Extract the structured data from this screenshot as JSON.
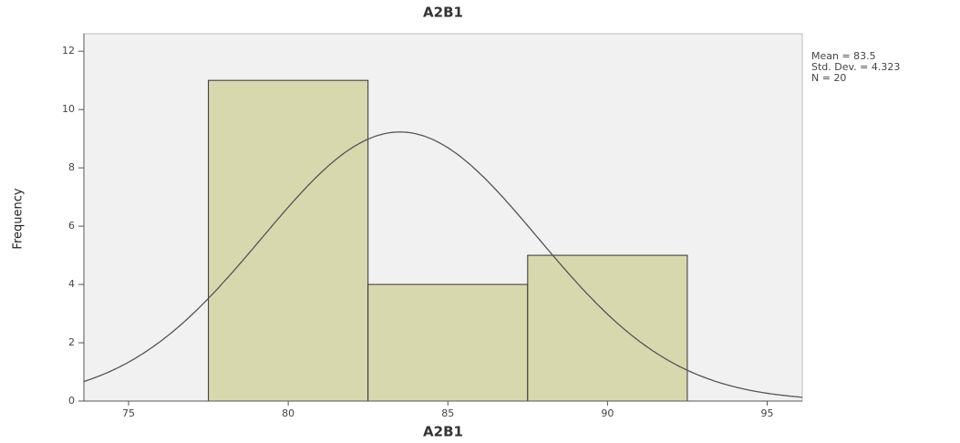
{
  "chart_data": {
    "type": "histogram",
    "title": "A2B1",
    "x_label": "A2B1",
    "y_label": "Frequency",
    "bins": [
      77.5,
      82.5,
      87.5,
      92.5
    ],
    "counts": [
      11,
      4,
      5
    ],
    "color": "#d8d8ae",
    "xlim": [
      73.6,
      96.1
    ],
    "xticks": [
      75,
      80,
      85,
      90,
      95
    ],
    "ylim": [
      0,
      12.6
    ],
    "yticks": [
      0,
      2,
      4,
      6,
      8,
      10,
      12
    ],
    "normal_curve": {
      "mean": {
        "value": 83.5,
        "label": "Mean = 83.5"
      },
      "sd": {
        "value": 4.323,
        "label": "Std. Dev. = 4.323"
      },
      "n": {
        "value": 20,
        "label": "N = 20"
      }
    }
  }
}
